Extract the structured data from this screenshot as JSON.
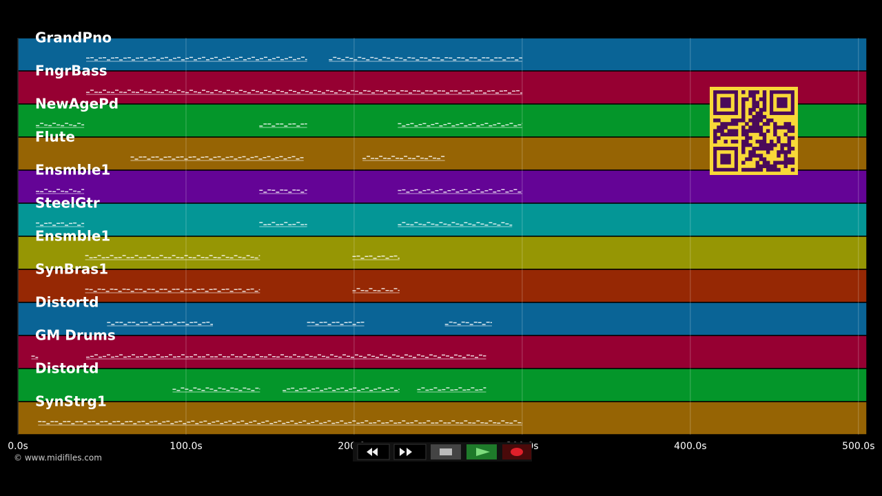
{
  "axis": {
    "xlim": [
      0,
      505
    ],
    "xticks": [
      {
        "value": 0,
        "label": "0.0s"
      },
      {
        "value": 100,
        "label": "100.0s"
      },
      {
        "value": 200,
        "label": "200.0s"
      },
      {
        "value": 300,
        "label": "300.0s"
      },
      {
        "value": 400,
        "label": "400.0s"
      },
      {
        "value": 500,
        "label": "500.0s"
      }
    ]
  },
  "tracks": [
    {
      "name": "GrandPno",
      "color": "#0a6496",
      "segments": [
        [
          40.6,
          172
        ],
        [
          185,
          300
        ]
      ]
    },
    {
      "name": "FngrBass",
      "color": "#960032",
      "segments": [
        [
          40.6,
          300
        ]
      ]
    },
    {
      "name": "NewAgePd",
      "color": "#04962a",
      "segments": [
        [
          10.7,
          39.4
        ],
        [
          143.6,
          172
        ],
        [
          226,
          300
        ]
      ]
    },
    {
      "name": "Flute",
      "color": "#966404",
      "segments": [
        [
          67,
          170
        ],
        [
          205,
          254
        ]
      ]
    },
    {
      "name": "Ensmble1",
      "color": "#640496",
      "segments": [
        [
          10.7,
          39.4
        ],
        [
          143.6,
          172
        ],
        [
          226,
          300
        ]
      ]
    },
    {
      "name": "SteelGtr",
      "color": "#049696",
      "segments": [
        [
          10.7,
          39.4
        ],
        [
          143.6,
          172
        ],
        [
          226,
          294
        ]
      ]
    },
    {
      "name": "Ensmble1",
      "color": "#969604",
      "segments": [
        [
          40,
          144
        ],
        [
          199,
          227
        ]
      ]
    },
    {
      "name": "SynBras1",
      "color": "#962804",
      "segments": [
        [
          40,
          144
        ],
        [
          199,
          227
        ]
      ]
    },
    {
      "name": "Distortd",
      "color": "#0a6496",
      "segments": [
        [
          53,
          116
        ],
        [
          172,
          206
        ],
        [
          254,
          282
        ]
      ]
    },
    {
      "name": "GM Drums",
      "color": "#960032",
      "segments": [
        [
          8,
          12
        ],
        [
          40.6,
          278.5
        ]
      ]
    },
    {
      "name": "Distortd",
      "color": "#04962a",
      "segments": [
        [
          92,
          144
        ],
        [
          157.5,
          227
        ],
        [
          237.5,
          278.5
        ]
      ]
    },
    {
      "name": "SynStrg1",
      "color": "#966404",
      "segments": [
        [
          12,
          300
        ]
      ]
    }
  ],
  "footer": {
    "credit": "© www.midifiles.com"
  }
}
